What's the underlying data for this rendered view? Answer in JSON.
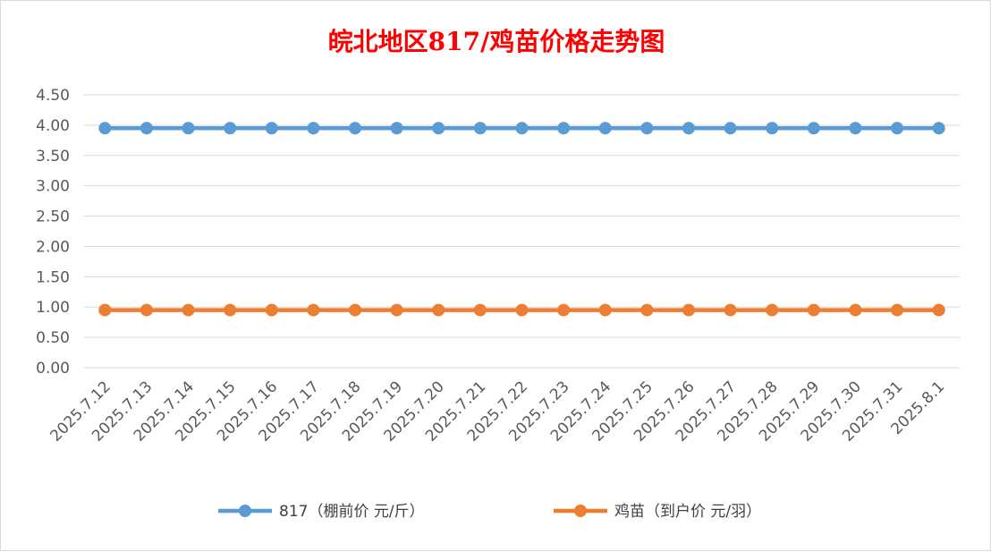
{
  "chart_data": {
    "type": "line",
    "title": "皖北地区817/鸡苗价格走势图",
    "categories": [
      "2025.7.12",
      "2025.7.13",
      "2025.7.14",
      "2025.7.15",
      "2025.7.16",
      "2025.7.17",
      "2025.7.18",
      "2025.7.19",
      "2025.7.20",
      "2025.7.21",
      "2025.7.22",
      "2025.7.23",
      "2025.7.24",
      "2025.7.25",
      "2025.7.26",
      "2025.7.27",
      "2025.7.28",
      "2025.7.29",
      "2025.7.30",
      "2025.7.31",
      "2025.8.1"
    ],
    "y_ticks": [
      "0.00",
      "0.50",
      "1.00",
      "1.50",
      "2.00",
      "2.50",
      "3.00",
      "3.50",
      "4.00",
      "4.50"
    ],
    "ylim": [
      0,
      4.5
    ],
    "grid": true,
    "legend_position": "bottom",
    "series": [
      {
        "name": "817（棚前价 元/斤）",
        "color": "#5b9bd5",
        "values": [
          3.95,
          3.95,
          3.95,
          3.95,
          3.95,
          3.95,
          3.95,
          3.95,
          3.95,
          3.95,
          3.95,
          3.95,
          3.95,
          3.95,
          3.95,
          3.95,
          3.95,
          3.95,
          3.95,
          3.95,
          3.95
        ]
      },
      {
        "name": "鸡苗（到户价 元/羽）",
        "color": "#ed7d31",
        "values": [
          0.95,
          0.95,
          0.95,
          0.95,
          0.95,
          0.95,
          0.95,
          0.95,
          0.95,
          0.95,
          0.95,
          0.95,
          0.95,
          0.95,
          0.95,
          0.95,
          0.95,
          0.95,
          0.95,
          0.95,
          0.95
        ]
      }
    ]
  }
}
